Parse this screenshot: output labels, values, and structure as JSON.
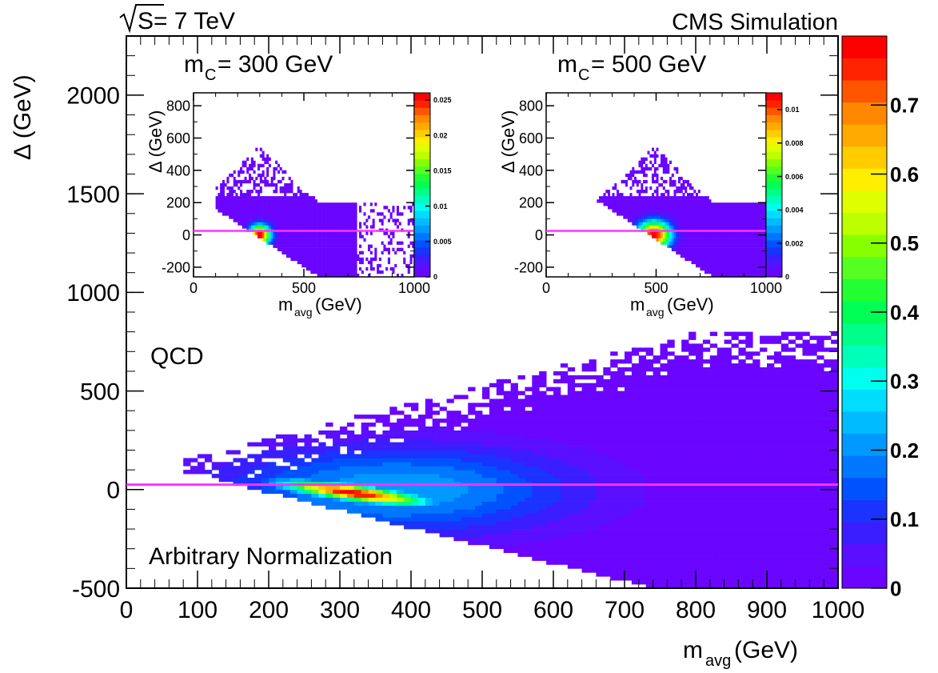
{
  "header": {
    "energy_sym": "S",
    "energy_rest": " = 7 TeV",
    "experiment": "CMS Simulation"
  },
  "colors": {
    "line": "#ff33ff",
    "frame": "#000000",
    "palette": [
      "#6a05ff",
      "#5a0fff",
      "#3a1eff",
      "#1a33ff",
      "#0052ff",
      "#0077ff",
      "#0099ff",
      "#00bbff",
      "#00ddff",
      "#00ffee",
      "#00ffbb",
      "#00ff88",
      "#00ff55",
      "#22ff33",
      "#55ff22",
      "#88ff00",
      "#bbff00",
      "#ddff00",
      "#ffee00",
      "#ffcc00",
      "#ffaa00",
      "#ff8800",
      "#ff5500",
      "#ff2200",
      "#ff0000"
    ]
  },
  "chart_data": [
    {
      "type": "heatmap",
      "name": "main",
      "xlabel_main": "m",
      "xlabel_sub": "avg",
      "xlabel_unit": " (GeV)",
      "ylabel": "Δ (GeV)",
      "xlim": [
        0,
        1000
      ],
      "ylim": [
        -500,
        2300
      ],
      "xticks": [
        "0",
        "100",
        "200",
        "300",
        "400",
        "500",
        "600",
        "700",
        "800",
        "900",
        "1000"
      ],
      "yticks": [
        "-500",
        "0",
        "500",
        "1000",
        "1500",
        "2000"
      ],
      "text_labels": {
        "sample": "QCD",
        "norm": "Arbitrary Normalization"
      },
      "horizontal_line_y": 25,
      "colorbar": {
        "range": [
          0,
          0.8
        ],
        "ticks": [
          "0",
          "0.1",
          "0.2",
          "0.3",
          "0.4",
          "0.5",
          "0.6",
          "0.7"
        ]
      },
      "peak": {
        "x": 305,
        "y": -10,
        "value": 0.78
      }
    },
    {
      "type": "heatmap",
      "name": "inset-300",
      "title_main": "m",
      "title_sub": "C",
      "title_rest": " = 300 GeV",
      "xlabel_main": "m",
      "xlabel_sub": "avg",
      "xlabel_unit": " (GeV)",
      "ylabel": "Δ (GeV)",
      "xlim": [
        0,
        1000
      ],
      "ylim": [
        -260,
        880
      ],
      "xticks": [
        "0",
        "500",
        "1000"
      ],
      "yticks": [
        "-200",
        "0",
        "200",
        "400",
        "600",
        "800"
      ],
      "horizontal_line_y": 25,
      "colorbar": {
        "range": [
          0,
          0.026
        ],
        "ticks": [
          "0",
          "0.005",
          "0.01",
          "0.015",
          "0.02",
          "0.025"
        ]
      },
      "peak": {
        "x": 300,
        "y": 0,
        "value": 0.026
      }
    },
    {
      "type": "heatmap",
      "name": "inset-500",
      "title_main": "m",
      "title_sub": "C",
      "title_rest": " = 500 GeV",
      "xlabel_main": "m",
      "xlabel_sub": "avg",
      "xlabel_unit": " (GeV)",
      "ylabel": "Δ (GeV)",
      "xlim": [
        0,
        1000
      ],
      "ylim": [
        -260,
        880
      ],
      "xticks": [
        "0",
        "500",
        "1000"
      ],
      "yticks": [
        "-200",
        "0",
        "200",
        "400",
        "600",
        "800"
      ],
      "horizontal_line_y": 25,
      "colorbar": {
        "range": [
          0,
          0.011
        ],
        "ticks": [
          "0",
          "0.002",
          "0.004",
          "0.006",
          "0.008",
          "0.01"
        ]
      },
      "peak": {
        "x": 490,
        "y": 0,
        "value": 0.011
      }
    }
  ]
}
